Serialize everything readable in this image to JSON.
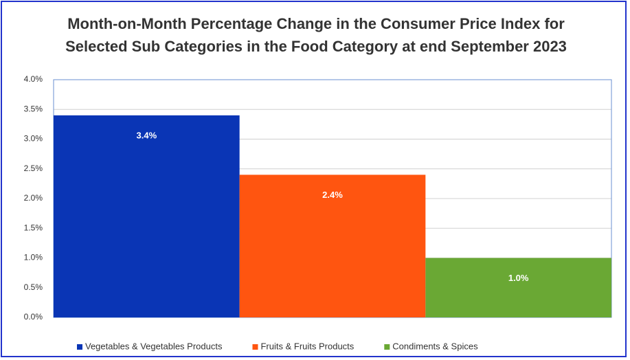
{
  "chart_data": {
    "type": "bar",
    "title": "Month-on-Month Percentage Change in the Consumer Price Index for Selected Sub Categories in the Food Category at end September 2023",
    "categories": [
      null
    ],
    "series": [
      {
        "name": "Vegetables & Vegetables Products",
        "color": "#0a35b5",
        "values": [
          3.4
        ],
        "value_labels": [
          "3.4%"
        ]
      },
      {
        "name": "Fruits & Fruits Products",
        "color": "#ff5510",
        "values": [
          2.4
        ],
        "value_labels": [
          "2.4%"
        ]
      },
      {
        "name": "Condiments & Spices",
        "color": "#6aa834",
        "values": [
          1.0
        ],
        "value_labels": [
          "1.0%"
        ]
      }
    ],
    "ylim": [
      0,
      4
    ],
    "yticks": [
      {
        "value": 0,
        "label": "0.0%"
      },
      {
        "value": 0.5,
        "label": "0.5%"
      },
      {
        "value": 1,
        "label": "1.0%"
      },
      {
        "value": 1.5,
        "label": "1.5%"
      },
      {
        "value": 2,
        "label": "2.0%"
      },
      {
        "value": 2.5,
        "label": "2.5%"
      },
      {
        "value": 3,
        "label": "3.0%"
      },
      {
        "value": 3.5,
        "label": "3.5%"
      },
      {
        "value": 4,
        "label": "4.0%"
      }
    ],
    "grid": true,
    "legend": "bottom"
  }
}
